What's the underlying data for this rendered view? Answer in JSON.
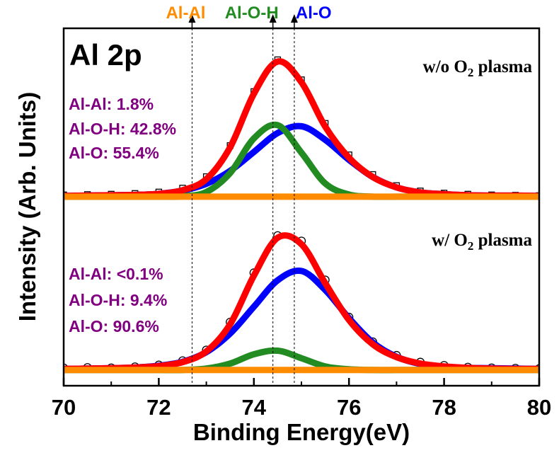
{
  "chart_data": {
    "type": "line",
    "panel_label": "Al 2p",
    "xlabel": "Binding Energy(eV)",
    "ylabel": "Intensity (Arb. Units)",
    "xlim": [
      70,
      80
    ],
    "xticks": [
      70,
      72,
      74,
      76,
      78,
      80
    ],
    "xminorticks": [
      71,
      73,
      75,
      77,
      79
    ],
    "ylim": [
      0,
      100
    ],
    "peaks": [
      {
        "label": "Al-Al",
        "x": 72.7,
        "color": "#ff8c00"
      },
      {
        "label": "Al-O-H",
        "x": 74.4,
        "color": "#228b22"
      },
      {
        "label": "Al-O",
        "x": 74.85,
        "color": "#0000ff"
      }
    ],
    "annotations": [
      {
        "parts": [
          "w/o O",
          "2",
          " plasma"
        ]
      },
      {
        "parts": [
          "w/ O",
          "2",
          " plasma"
        ]
      }
    ],
    "compositions": [
      [
        "Al-Al: 1.8%",
        "Al-O-H: 42.8%",
        "Al-O: 55.4%"
      ],
      [
        "Al-Al: <0.1%",
        "Al-O-H: 9.4%",
        "Al-O: 90.6%"
      ]
    ],
    "composition_color": "#800080",
    "x": [
      70,
      70.5,
      71,
      71.5,
      72,
      72.5,
      73,
      73.5,
      74,
      74.5,
      75,
      75.5,
      76,
      76.5,
      77,
      77.5,
      78,
      78.5,
      79,
      79.5,
      80
    ],
    "series": [
      {
        "color": "#000000",
        "marker": "square",
        "values": [
          53.4,
          53.5,
          53.6,
          53.8,
          54.2,
          55.3,
          58.5,
          67.2,
          82.3,
          91.2,
          85.6,
          73.4,
          64.6,
          59.1,
          56.0,
          54.5,
          53.9,
          53.6,
          53.4,
          53.3,
          53.2
        ]
      },
      {
        "color": "#0000ff",
        "values": [
          53.1,
          53.2,
          53.3,
          53.4,
          53.7,
          54.6,
          56.5,
          60.1,
          65.4,
          70.7,
          72.6,
          68.8,
          63.2,
          58.4,
          55.5,
          54.1,
          53.6,
          53.3,
          53.2,
          53.2,
          53.1
        ]
      },
      {
        "color": "#228b22",
        "values": [
          52.9,
          52.9,
          52.9,
          52.9,
          52.9,
          53.0,
          54.2,
          59.5,
          69.2,
          72.9,
          65.2,
          56.6,
          53.5,
          52.9,
          52.9,
          52.9,
          52.9,
          52.9,
          52.9,
          52.9,
          52.9
        ]
      },
      {
        "color": "#ff0000",
        "values": [
          53.1,
          53.2,
          53.3,
          53.4,
          53.7,
          54.7,
          57.8,
          66.7,
          81.7,
          90.7,
          84.9,
          72.5,
          63.8,
          58.4,
          55.5,
          54.1,
          53.6,
          53.3,
          53.2,
          53.2,
          53.1
        ]
      },
      {
        "color": "#ff8c00",
        "values": [
          52.9,
          52.9,
          52.9,
          52.9,
          52.9,
          52.9,
          52.9,
          52.9,
          52.9,
          52.9,
          52.9,
          52.9,
          52.9,
          52.9,
          52.9,
          52.9,
          52.9,
          52.9,
          52.9,
          52.9,
          52.9
        ]
      },
      {
        "color": "#000000",
        "marker": "circle",
        "values": [
          5.0,
          5.1,
          5.0,
          5.3,
          5.8,
          7.0,
          10.0,
          17.8,
          31.6,
          42.0,
          40.5,
          29.6,
          19.2,
          12.3,
          8.5,
          6.6,
          5.7,
          5.2,
          5.0,
          4.9,
          4.8
        ]
      },
      {
        "color": "#0000ff",
        "values": [
          4.7,
          4.8,
          4.9,
          5.1,
          5.6,
          6.7,
          9.4,
          14.6,
          22.1,
          29.5,
          32.1,
          26.8,
          18.9,
          12.1,
          8.1,
          6.1,
          5.3,
          5.0,
          4.9,
          4.8,
          4.7
        ]
      },
      {
        "color": "#228b22",
        "values": [
          4.4,
          4.4,
          4.4,
          4.4,
          4.4,
          4.4,
          4.8,
          6.2,
          8.8,
          9.8,
          7.7,
          5.4,
          4.6,
          4.4,
          4.4,
          4.4,
          4.4,
          4.4,
          4.4,
          4.4,
          4.4
        ]
      },
      {
        "color": "#ff0000",
        "values": [
          4.7,
          4.8,
          4.9,
          5.1,
          5.5,
          6.6,
          9.6,
          17.2,
          30.8,
          41.4,
          39.6,
          28.7,
          18.4,
          11.6,
          8.0,
          6.2,
          5.4,
          5.0,
          4.8,
          4.7,
          4.7
        ]
      },
      {
        "color": "#ff8c00",
        "values": [
          4.4,
          4.4,
          4.4,
          4.4,
          4.4,
          4.4,
          4.4,
          4.4,
          4.4,
          4.4,
          4.4,
          4.4,
          4.4,
          4.4,
          4.4,
          4.4,
          4.4,
          4.4,
          4.4,
          4.4,
          4.4
        ]
      }
    ]
  }
}
